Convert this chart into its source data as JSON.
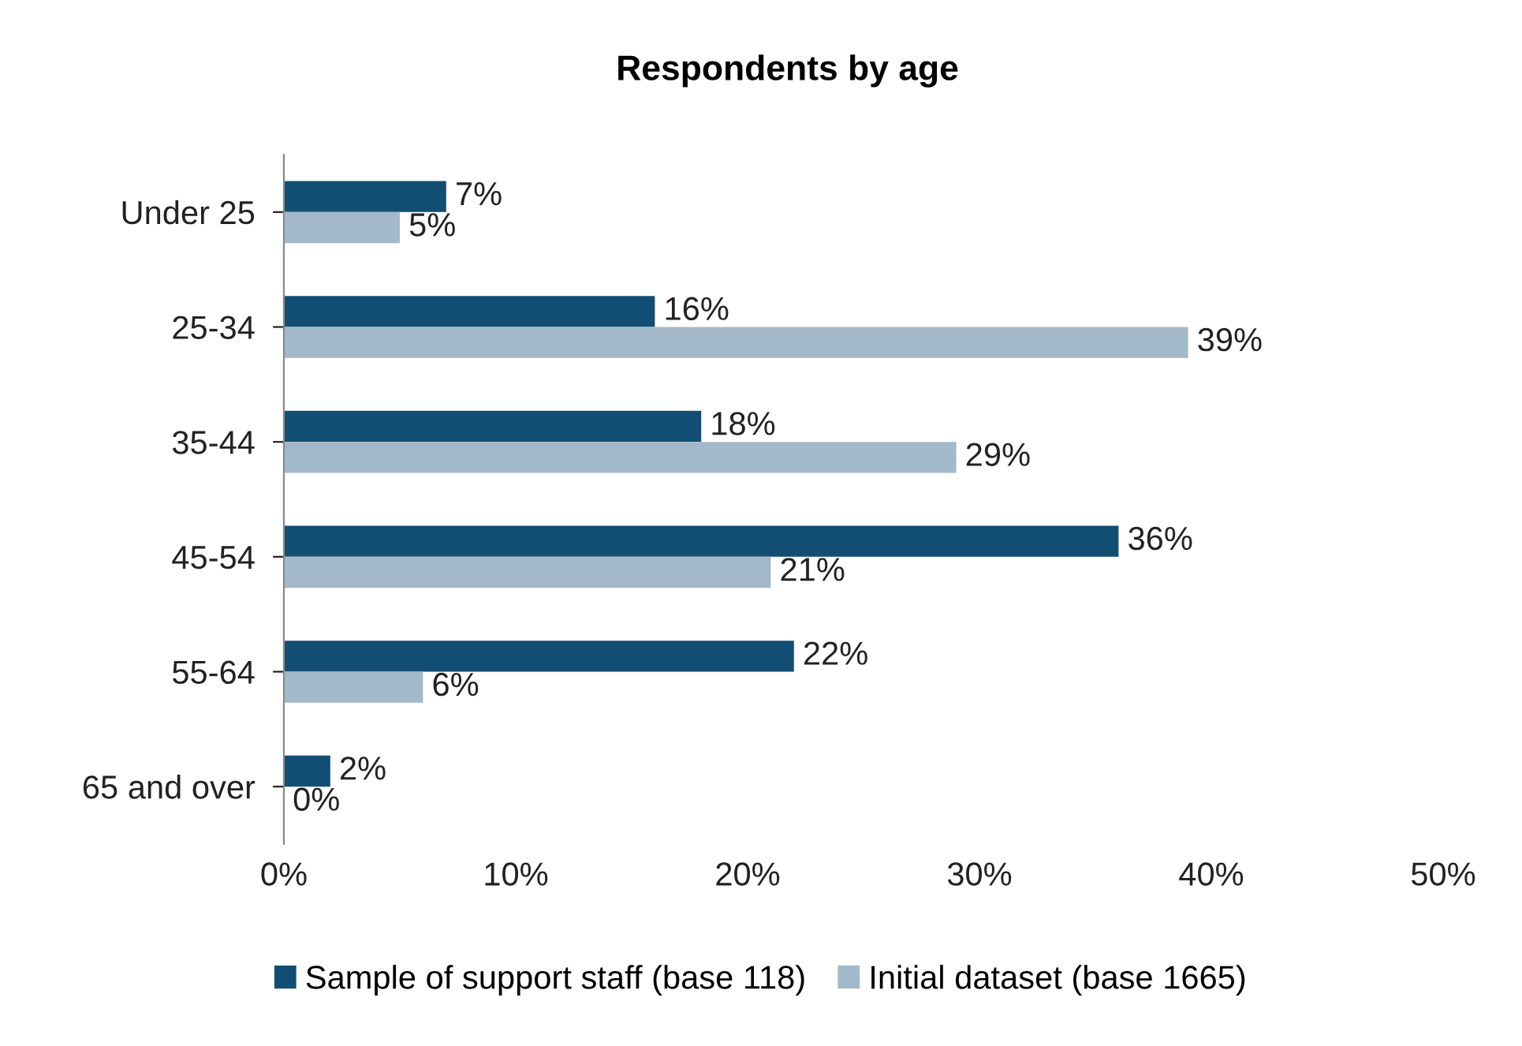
{
  "chart_data": {
    "type": "bar",
    "orientation": "horizontal",
    "title": "Respondents by age",
    "categories": [
      "Under 25",
      "25-34",
      "35-44",
      "45-54",
      "55-64",
      "65 and over"
    ],
    "series": [
      {
        "name": "Sample of support staff (base 118)",
        "color": "#124e73",
        "values": [
          7,
          16,
          18,
          36,
          22,
          2
        ],
        "value_labels": [
          "7%",
          "16%",
          "18%",
          "36%",
          "22%",
          "2%"
        ]
      },
      {
        "name": "Initial dataset (base 1665)",
        "color": "#a3b9c9",
        "values": [
          5,
          39,
          29,
          21,
          6,
          0
        ],
        "value_labels": [
          "5%",
          "39%",
          "29%",
          "21%",
          "6%",
          "0%"
        ]
      }
    ],
    "xlim": [
      0,
      50
    ],
    "xticks": [
      {
        "value": 0,
        "label": "0%"
      },
      {
        "value": 10,
        "label": "10%"
      },
      {
        "value": 20,
        "label": "20%"
      },
      {
        "value": 30,
        "label": "30%"
      },
      {
        "value": 40,
        "label": "40%"
      },
      {
        "value": 50,
        "label": "50%"
      }
    ],
    "grid": false,
    "legend": "bottom"
  }
}
